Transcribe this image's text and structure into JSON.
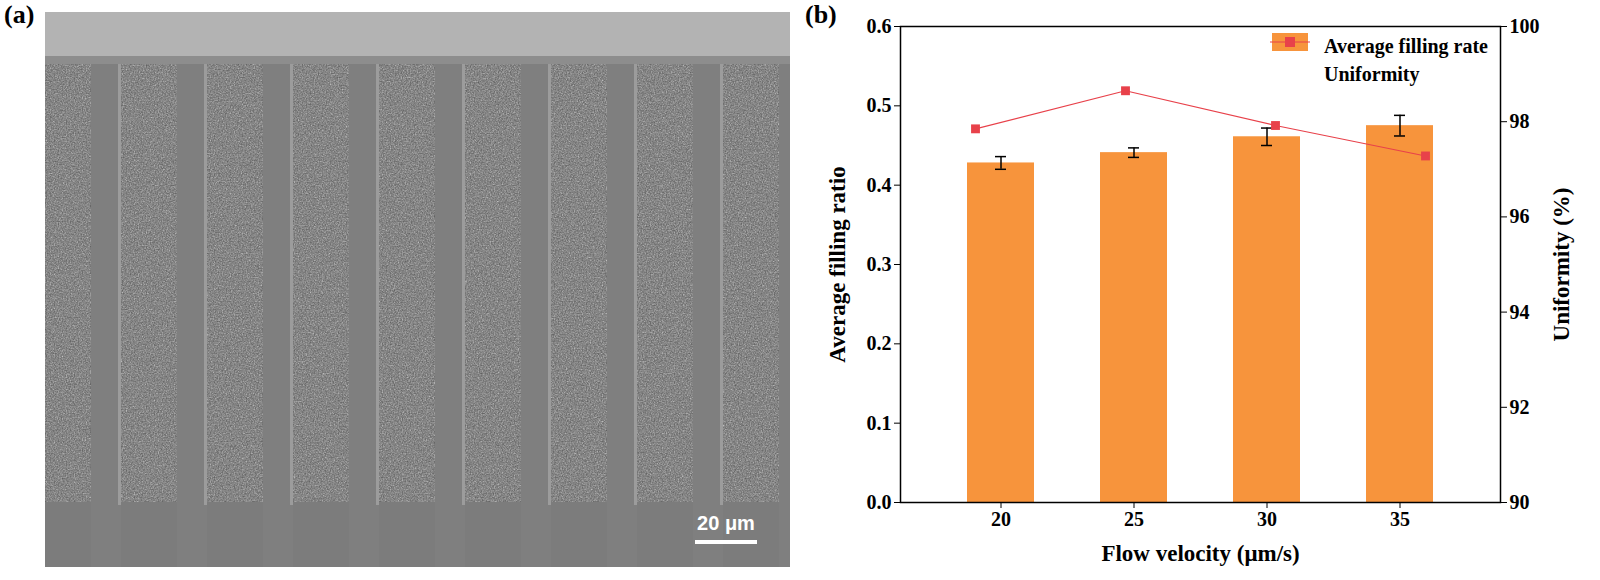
{
  "panel_a": {
    "label": "(a)",
    "scale_bar": "20 μm"
  },
  "panel_b": {
    "label": "(b)"
  },
  "chart_data": {
    "type": "bar",
    "xlabel": "Flow velocity (μm/s)",
    "ylabel": "Average filling ratio",
    "y2label": "Uniformity (%)",
    "categories": [
      "20",
      "25",
      "30",
      "35"
    ],
    "series": [
      {
        "name": "Average filling rate",
        "type": "bar",
        "color": "#f7943c",
        "values": [
          0.428,
          0.441,
          0.461,
          0.475
        ],
        "errors": [
          0.008,
          0.006,
          0.011,
          0.013
        ]
      },
      {
        "name": "Uniformity",
        "type": "line",
        "axis": "y2",
        "color": "#e8414a",
        "marker": "square",
        "values": [
          97.85,
          98.65,
          97.92,
          97.28
        ]
      }
    ],
    "ylim": [
      0,
      0.6
    ],
    "yticks": [
      {
        "value": 0,
        "label": "0.0"
      },
      0.1,
      0.2,
      0.3,
      0.4,
      0.5,
      0.6
    ],
    "y2lim": [
      90,
      100
    ],
    "y2ticks": [
      90,
      92,
      94,
      96,
      98,
      100
    ],
    "legend": "upper right"
  }
}
